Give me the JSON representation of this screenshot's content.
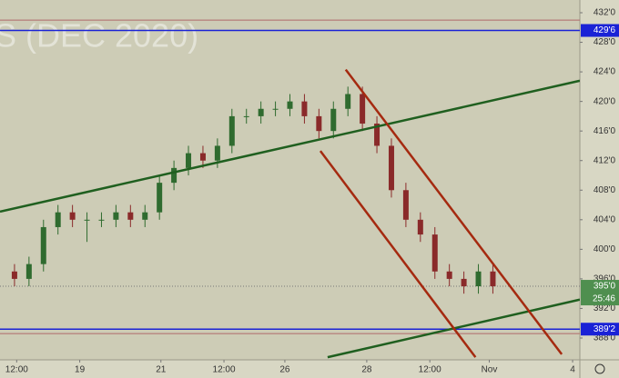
{
  "chart_data": {
    "type": "candlestick",
    "watermark": "S (DEC 2020)",
    "x": [
      2,
      4,
      6,
      8,
      10,
      12,
      14,
      16,
      18,
      20,
      22,
      24,
      26,
      28,
      30,
      32,
      34,
      36,
      38,
      40,
      42,
      44,
      46,
      48,
      50,
      52,
      54,
      56,
      58,
      60,
      62,
      64,
      66,
      68
    ],
    "open": [
      397,
      396,
      398,
      403,
      405,
      404,
      404,
      404,
      405,
      404,
      405,
      409,
      411,
      413,
      412,
      414,
      418,
      418,
      419,
      419,
      420,
      418,
      416,
      419,
      421,
      417,
      414,
      408,
      404,
      402,
      397,
      396,
      395,
      397
    ],
    "high": [
      398,
      399,
      404,
      406,
      406,
      405,
      405,
      406,
      406,
      406,
      410,
      412,
      414,
      414,
      415,
      419,
      419,
      420,
      420,
      421,
      421,
      419,
      420,
      422,
      422,
      418,
      415,
      409,
      405,
      403,
      398,
      397,
      398,
      398
    ],
    "low": [
      395,
      395,
      397,
      402,
      403,
      401,
      403,
      403,
      403,
      403,
      404,
      408,
      410,
      411,
      411,
      413,
      417,
      417,
      418,
      418,
      417,
      415,
      415,
      418,
      416,
      413,
      407,
      403,
      401,
      396,
      395,
      394,
      394,
      394
    ],
    "close": [
      396,
      398,
      403,
      405,
      404,
      404,
      404,
      405,
      404,
      405,
      409,
      411,
      413,
      412,
      414,
      418,
      418,
      419,
      419,
      420,
      418,
      416,
      419,
      421,
      417,
      414,
      408,
      404,
      402,
      397,
      396,
      395,
      397,
      395
    ],
    "up_color": "#2f6b2f",
    "down_color": "#8a2a2a",
    "xlim": [
      0,
      80
    ],
    "ylim": [
      385.05,
      433.72
    ],
    "xticks": [
      {
        "value": 2.3,
        "label": "12:00"
      },
      {
        "value": 11,
        "label": "19"
      },
      {
        "value": 22.2,
        "label": "21"
      },
      {
        "value": 30.9,
        "label": "12:00"
      },
      {
        "value": 39.3,
        "label": "26"
      },
      {
        "value": 50.6,
        "label": "28"
      },
      {
        "value": 59.3,
        "label": "12:00"
      },
      {
        "value": 67.5,
        "label": "Nov"
      },
      {
        "value": 79,
        "label": "4"
      }
    ],
    "yticks": [
      {
        "value": 432,
        "label": "432'0"
      },
      {
        "value": 428,
        "label": "428'0"
      },
      {
        "value": 424,
        "label": "424'0"
      },
      {
        "value": 420,
        "label": "420'0"
      },
      {
        "value": 416,
        "label": "416'0"
      },
      {
        "value": 412,
        "label": "412'0"
      },
      {
        "value": 408,
        "label": "408'0"
      },
      {
        "value": 404,
        "label": "404'0"
      },
      {
        "value": 400,
        "label": "400'0"
      },
      {
        "value": 396,
        "label": "396'0"
      },
      {
        "value": 392,
        "label": "392'0"
      },
      {
        "value": 388,
        "label": "388'0"
      }
    ],
    "grid": false,
    "hlines": [
      {
        "value": 431,
        "color": "#b06a6a"
      },
      {
        "value": 429.6,
        "label": "429'6",
        "color": "#1a22d6"
      },
      {
        "value": 389.2,
        "label": "389'2",
        "color": "#1a22d6"
      },
      {
        "value": 388.6,
        "color": "#b06a6a"
      }
    ],
    "last_price": {
      "value": 395,
      "label": "395'0",
      "color": "#4f8f4f"
    },
    "countdown": "25:46",
    "trendlines": [
      {
        "color": "#1f5f1f",
        "x": [
          0,
          80
        ],
        "y": [
          405.1,
          422.8
        ]
      },
      {
        "color": "#1f5f1f",
        "x": [
          45.2,
          80
        ],
        "y": [
          385.4,
          393.2
        ]
      },
      {
        "color": "#a52a10",
        "x": [
          47.7,
          77.5
        ],
        "y": [
          424.3,
          385.8
        ]
      },
      {
        "color": "#a52a10",
        "x": [
          44.2,
          65.6
        ],
        "y": [
          413.3,
          385.4
        ]
      }
    ]
  }
}
